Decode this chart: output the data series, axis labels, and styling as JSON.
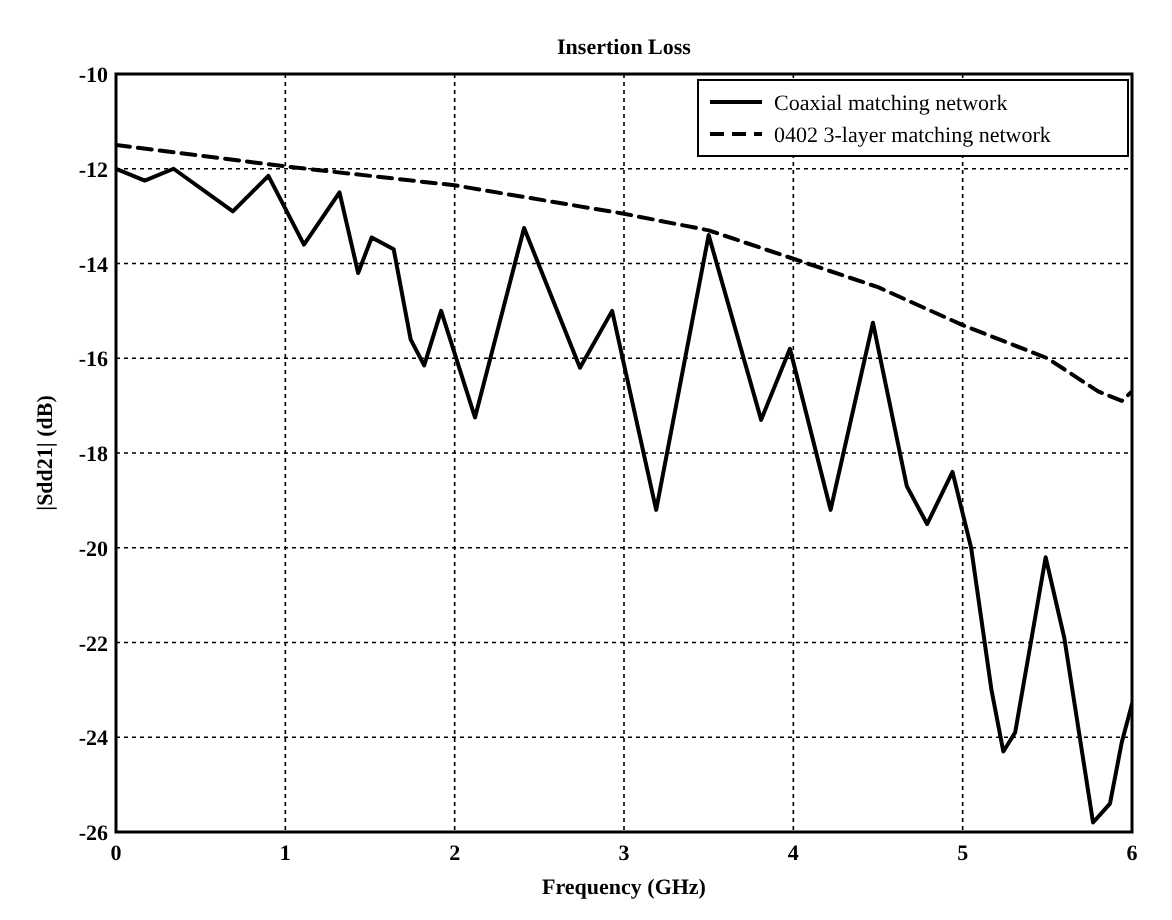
{
  "chart_data": {
    "type": "line",
    "title": "Insertion Loss",
    "xlabel": "Frequency (GHz)",
    "ylabel": "|Sdd21| (dB)",
    "xlim": [
      0,
      6
    ],
    "xticks": [
      0,
      1,
      2,
      3,
      4,
      5,
      6
    ],
    "ylim": [
      -26,
      -10
    ],
    "yticks": [
      -26,
      -24,
      -22,
      -20,
      -18,
      -16,
      -14,
      -12,
      -10
    ],
    "grid": true,
    "legend": "top right",
    "series": [
      {
        "name": "Coaxial matching network",
        "color": "#000000",
        "line_style": "solid",
        "x": [
          0,
          0.17,
          0.34,
          0.69,
          0.9,
          1.11,
          1.32,
          1.43,
          1.51,
          1.64,
          1.74,
          1.82,
          1.92,
          2.12,
          2.41,
          2.74,
          2.93,
          3.19,
          3.5,
          3.81,
          3.98,
          4.22,
          4.47,
          4.67,
          4.79,
          4.94,
          5.05,
          5.17,
          5.24,
          5.31,
          5.49,
          5.6,
          5.77,
          5.87,
          5.94,
          6
        ],
        "values": [
          -12.0,
          -12.25,
          -12.0,
          -12.9,
          -12.15,
          -13.6,
          -12.5,
          -14.2,
          -13.45,
          -13.7,
          -15.6,
          -16.15,
          -15.0,
          -17.25,
          -13.25,
          -16.2,
          -15.0,
          -19.2,
          -13.4,
          -17.3,
          -15.8,
          -19.2,
          -15.25,
          -18.7,
          -19.5,
          -18.4,
          -20.0,
          -23.0,
          -24.3,
          -23.9,
          -20.2,
          -21.9,
          -25.8,
          -25.4,
          -24.1,
          -23.3
        ]
      },
      {
        "name": "0402 3-layer matching network",
        "color": "#000000",
        "line_style": "dashed",
        "x": [
          0,
          1,
          2,
          3,
          3.5,
          4,
          4.5,
          5,
          5.5,
          5.8,
          5.94,
          6
        ],
        "values": [
          -11.5,
          -11.95,
          -12.35,
          -12.95,
          -13.3,
          -13.9,
          -14.5,
          -15.3,
          -16.0,
          -16.7,
          -16.9,
          -16.7
        ]
      }
    ]
  }
}
